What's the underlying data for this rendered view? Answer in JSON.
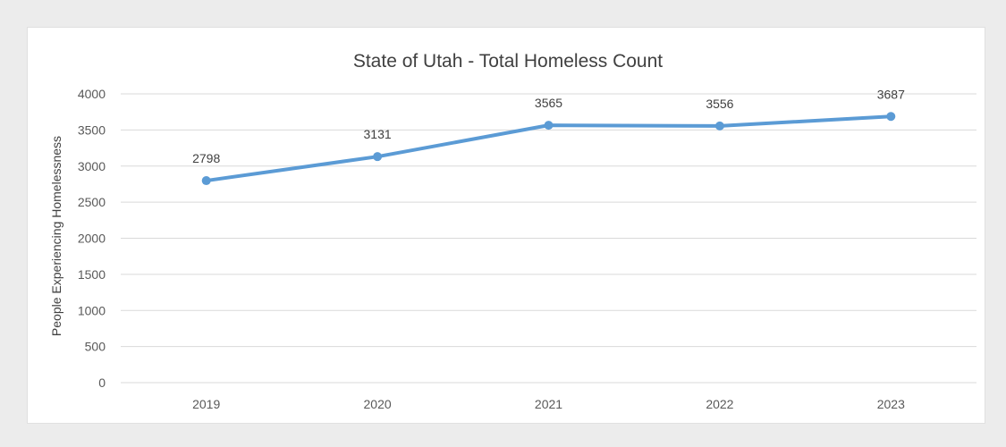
{
  "chart_data": {
    "type": "line",
    "title": "State of Utah - Total Homeless Count",
    "xlabel": "",
    "ylabel": "People Experiencing Homelessness",
    "categories": [
      "2019",
      "2020",
      "2021",
      "2022",
      "2023"
    ],
    "series": [
      {
        "values": [
          2798,
          3131,
          3565,
          3556,
          3687
        ],
        "color": "#5b9bd5"
      }
    ],
    "ylim": [
      0,
      4000
    ],
    "yticks": [
      0,
      500,
      1000,
      1500,
      2000,
      2500,
      3000,
      3500,
      4000
    ],
    "grid": true,
    "legend": "none",
    "data_labels": true
  }
}
